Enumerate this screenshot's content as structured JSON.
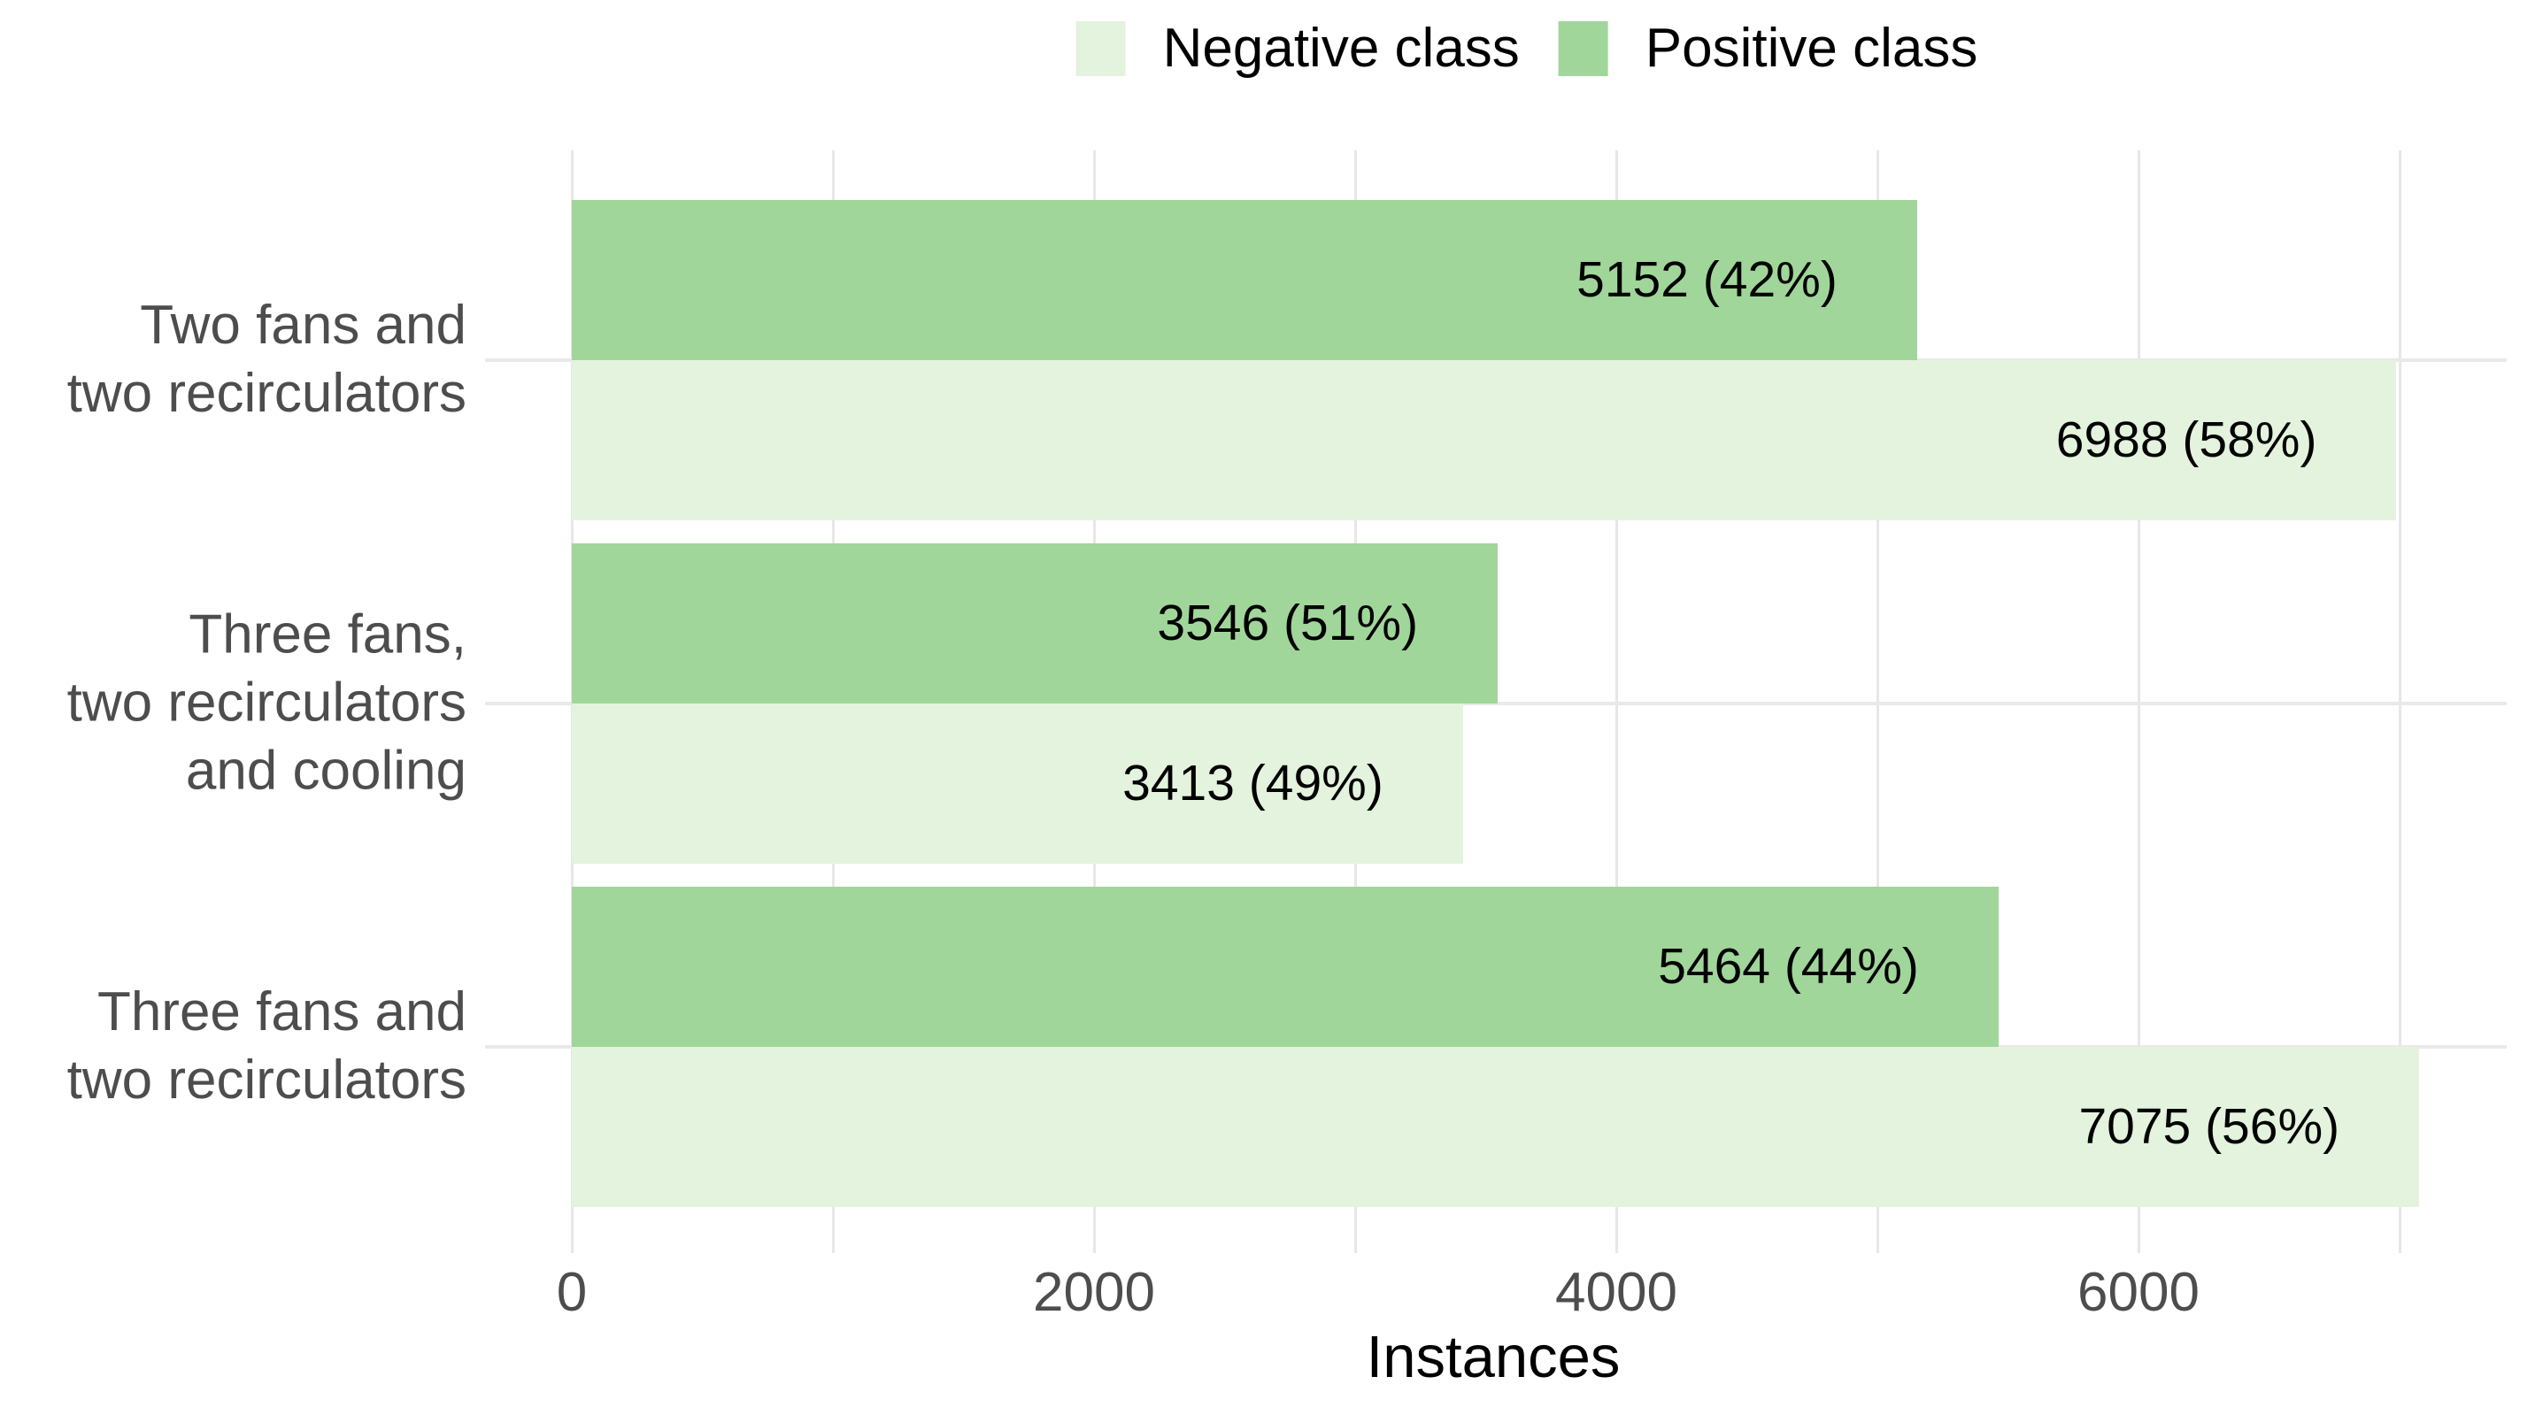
{
  "chart_data": {
    "type": "bar",
    "orientation": "horizontal",
    "title": "",
    "xlabel": "Instances",
    "ylabel": "",
    "xlim": [
      0,
      7410
    ],
    "x_tick_values": [
      0,
      2000,
      4000,
      6000
    ],
    "x_tick_labels": [
      "0",
      "2000",
      "4000",
      "6000"
    ],
    "gridline_values": [
      0,
      1000,
      2000,
      3000,
      4000,
      5000,
      6000,
      7000
    ],
    "grid": "on",
    "legend_position": "top-center",
    "categories": [
      {
        "id": "two-fans-two-recirculators",
        "lines": [
          "Two fans and",
          "two recirculators"
        ]
      },
      {
        "id": "three-fans-two-recirculators-cooling",
        "lines": [
          "Three fans,",
          "two recirculators",
          "and cooling"
        ]
      },
      {
        "id": "three-fans-two-recirculators",
        "lines": [
          "Three fans and",
          "two recirculators"
        ]
      }
    ],
    "series": [
      {
        "name": "Positive class",
        "color": "#a1d69a",
        "values": [
          5152,
          3546,
          5464
        ],
        "labels": [
          "5152 (42%)",
          "3546 (51%)",
          "5464 (44%)"
        ],
        "percents": [
          42,
          51,
          44
        ]
      },
      {
        "name": "Negative class",
        "color": "#e3f3dd",
        "values": [
          6988,
          3413,
          7075
        ],
        "labels": [
          "6988 (58%)",
          "3413 (49%)",
          "7075 (56%)"
        ],
        "percents": [
          58,
          49,
          56
        ]
      }
    ],
    "legend": {
      "items": [
        {
          "label": "Negative class",
          "color": "#e3f3dd"
        },
        {
          "label": "Positive class",
          "color": "#a1d69a"
        }
      ]
    },
    "colors": {
      "grid": "#e7e7e7",
      "axis_text": "#4d4d4d",
      "value_label": "#000000",
      "legend_text": "#000000",
      "axis_title": "#000000",
      "background": "#ffffff"
    }
  }
}
